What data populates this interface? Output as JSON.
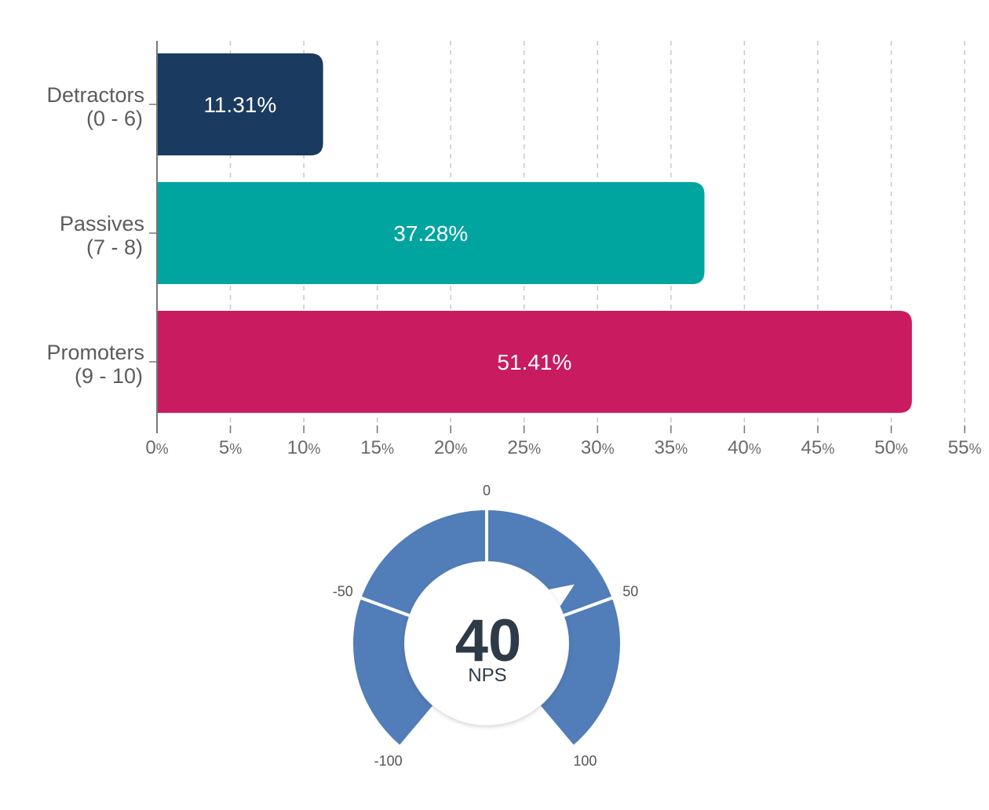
{
  "chart_data": [
    {
      "type": "bar",
      "orientation": "horizontal",
      "categories": [
        {
          "name": "Detractors",
          "range": "(0 - 6)"
        },
        {
          "name": "Passives",
          "range": "(7 - 8)"
        },
        {
          "name": "Promoters",
          "range": "(9 - 10)"
        }
      ],
      "values": [
        11.31,
        37.28,
        51.41
      ],
      "value_labels": [
        "11.31%",
        "37.28%",
        "51.41%"
      ],
      "colors": [
        "#1b3a5f",
        "#00a5a0",
        "#c91b60"
      ],
      "xlim": [
        0,
        55
      ],
      "xticks": [
        0,
        5,
        10,
        15,
        20,
        25,
        30,
        35,
        40,
        45,
        50,
        55
      ],
      "xtick_suffix": "%",
      "grid": "vertical dashed"
    },
    {
      "type": "gauge",
      "value": 40,
      "value_label": "40",
      "caption": "NPS",
      "range": [
        -100,
        100
      ],
      "ticks": [
        "-100",
        "-50",
        "0",
        "50",
        "100"
      ],
      "color": "#517db8"
    }
  ]
}
